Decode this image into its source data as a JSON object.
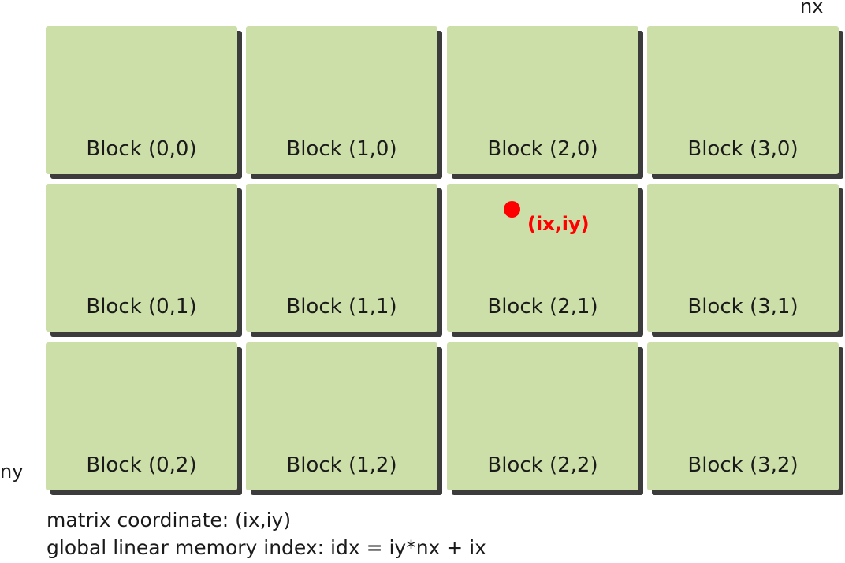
{
  "axes": {
    "x_label": "nx",
    "y_label": "ny"
  },
  "blocks": [
    [
      "Block (0,0)",
      "Block (1,0)",
      "Block (2,0)",
      "Block (3,0)"
    ],
    [
      "Block (0,1)",
      "Block (1,1)",
      "Block (2,1)",
      "Block (3,1)"
    ],
    [
      "Block (0,2)",
      "Block (1,2)",
      "Block (2,2)",
      "Block (3,2)"
    ]
  ],
  "thread": {
    "label": "(ix,iy)",
    "block": "Block (2,1)"
  },
  "caption": {
    "line1": "matrix coordinate: (ix,iy)",
    "line2": "global linear memory index: idx = iy*nx + ix"
  },
  "colors": {
    "block_fill": "#cddfa8",
    "block_shadow": "#3c3c3c",
    "highlight": "#ff0000",
    "text": "#1a1a1a"
  }
}
